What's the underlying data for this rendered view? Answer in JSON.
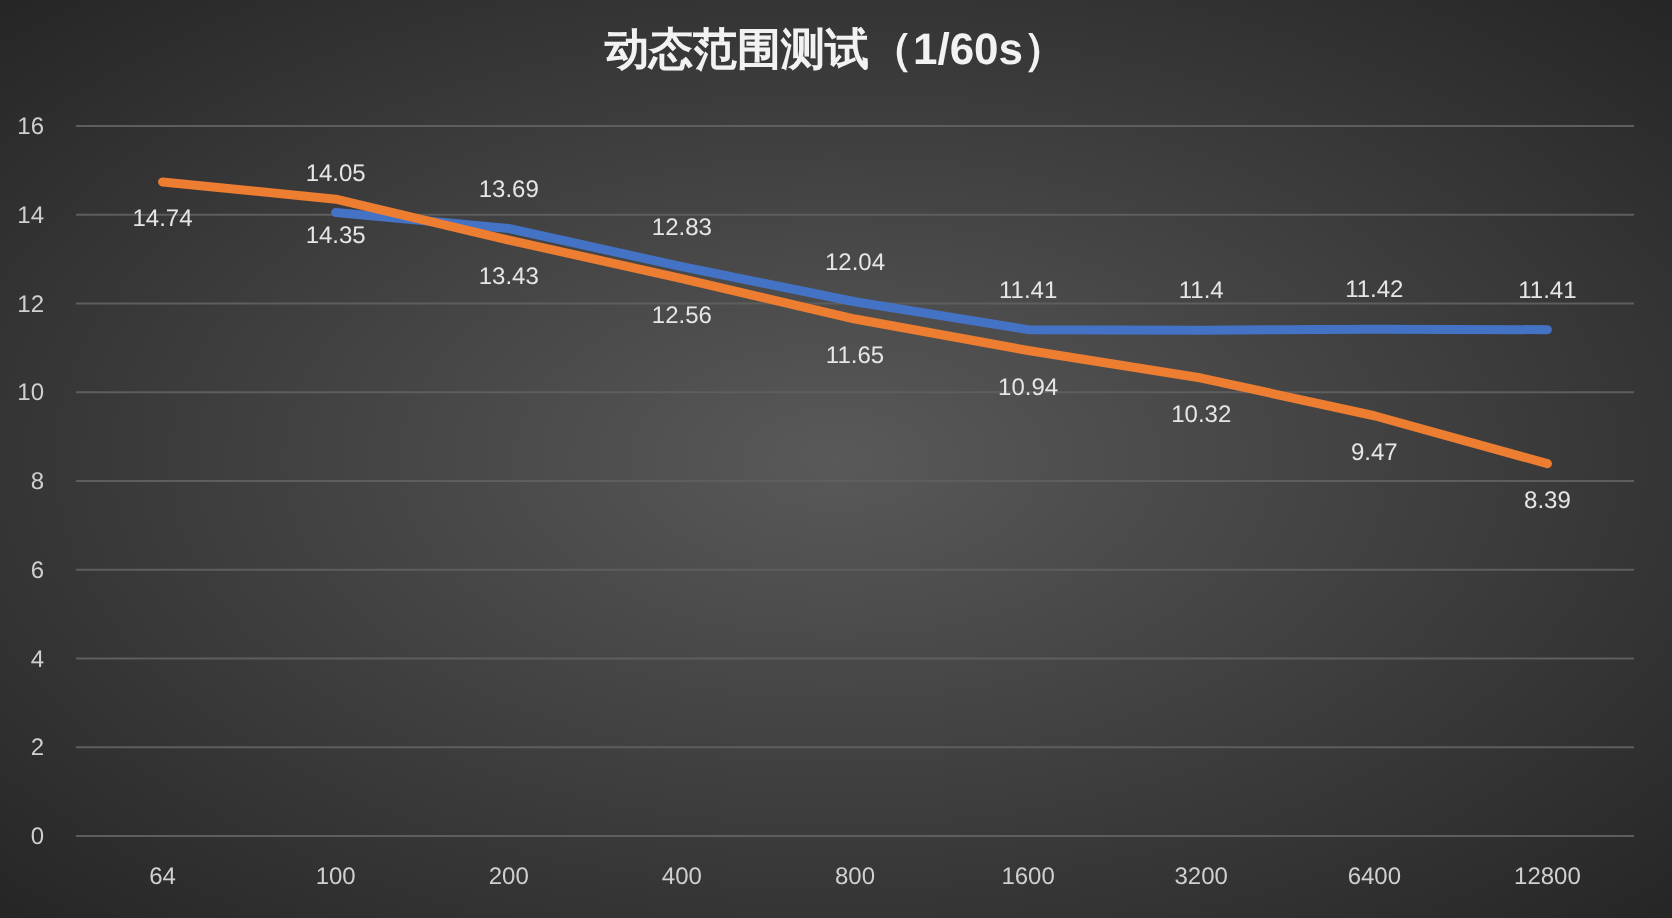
{
  "chart_data": {
    "type": "line",
    "title": "动态范围测试（1/60s）",
    "categories": [
      "64",
      "100",
      "200",
      "400",
      "800",
      "1600",
      "3200",
      "6400",
      "12800"
    ],
    "series": [
      {
        "color": "#4472c4",
        "values": [
          null,
          14.05,
          13.69,
          12.83,
          12.04,
          11.41,
          11.4,
          11.42,
          11.41
        ]
      },
      {
        "color": "#ed7d31",
        "values": [
          14.74,
          14.35,
          13.43,
          12.56,
          11.65,
          10.94,
          10.32,
          9.47,
          8.39
        ]
      }
    ],
    "ylim": [
      0,
      16
    ],
    "yticks": [
      0,
      2,
      4,
      6,
      8,
      10,
      12,
      14,
      16
    ],
    "grid": "y",
    "data_labels": true,
    "marker": "none",
    "line_style": "solid"
  }
}
